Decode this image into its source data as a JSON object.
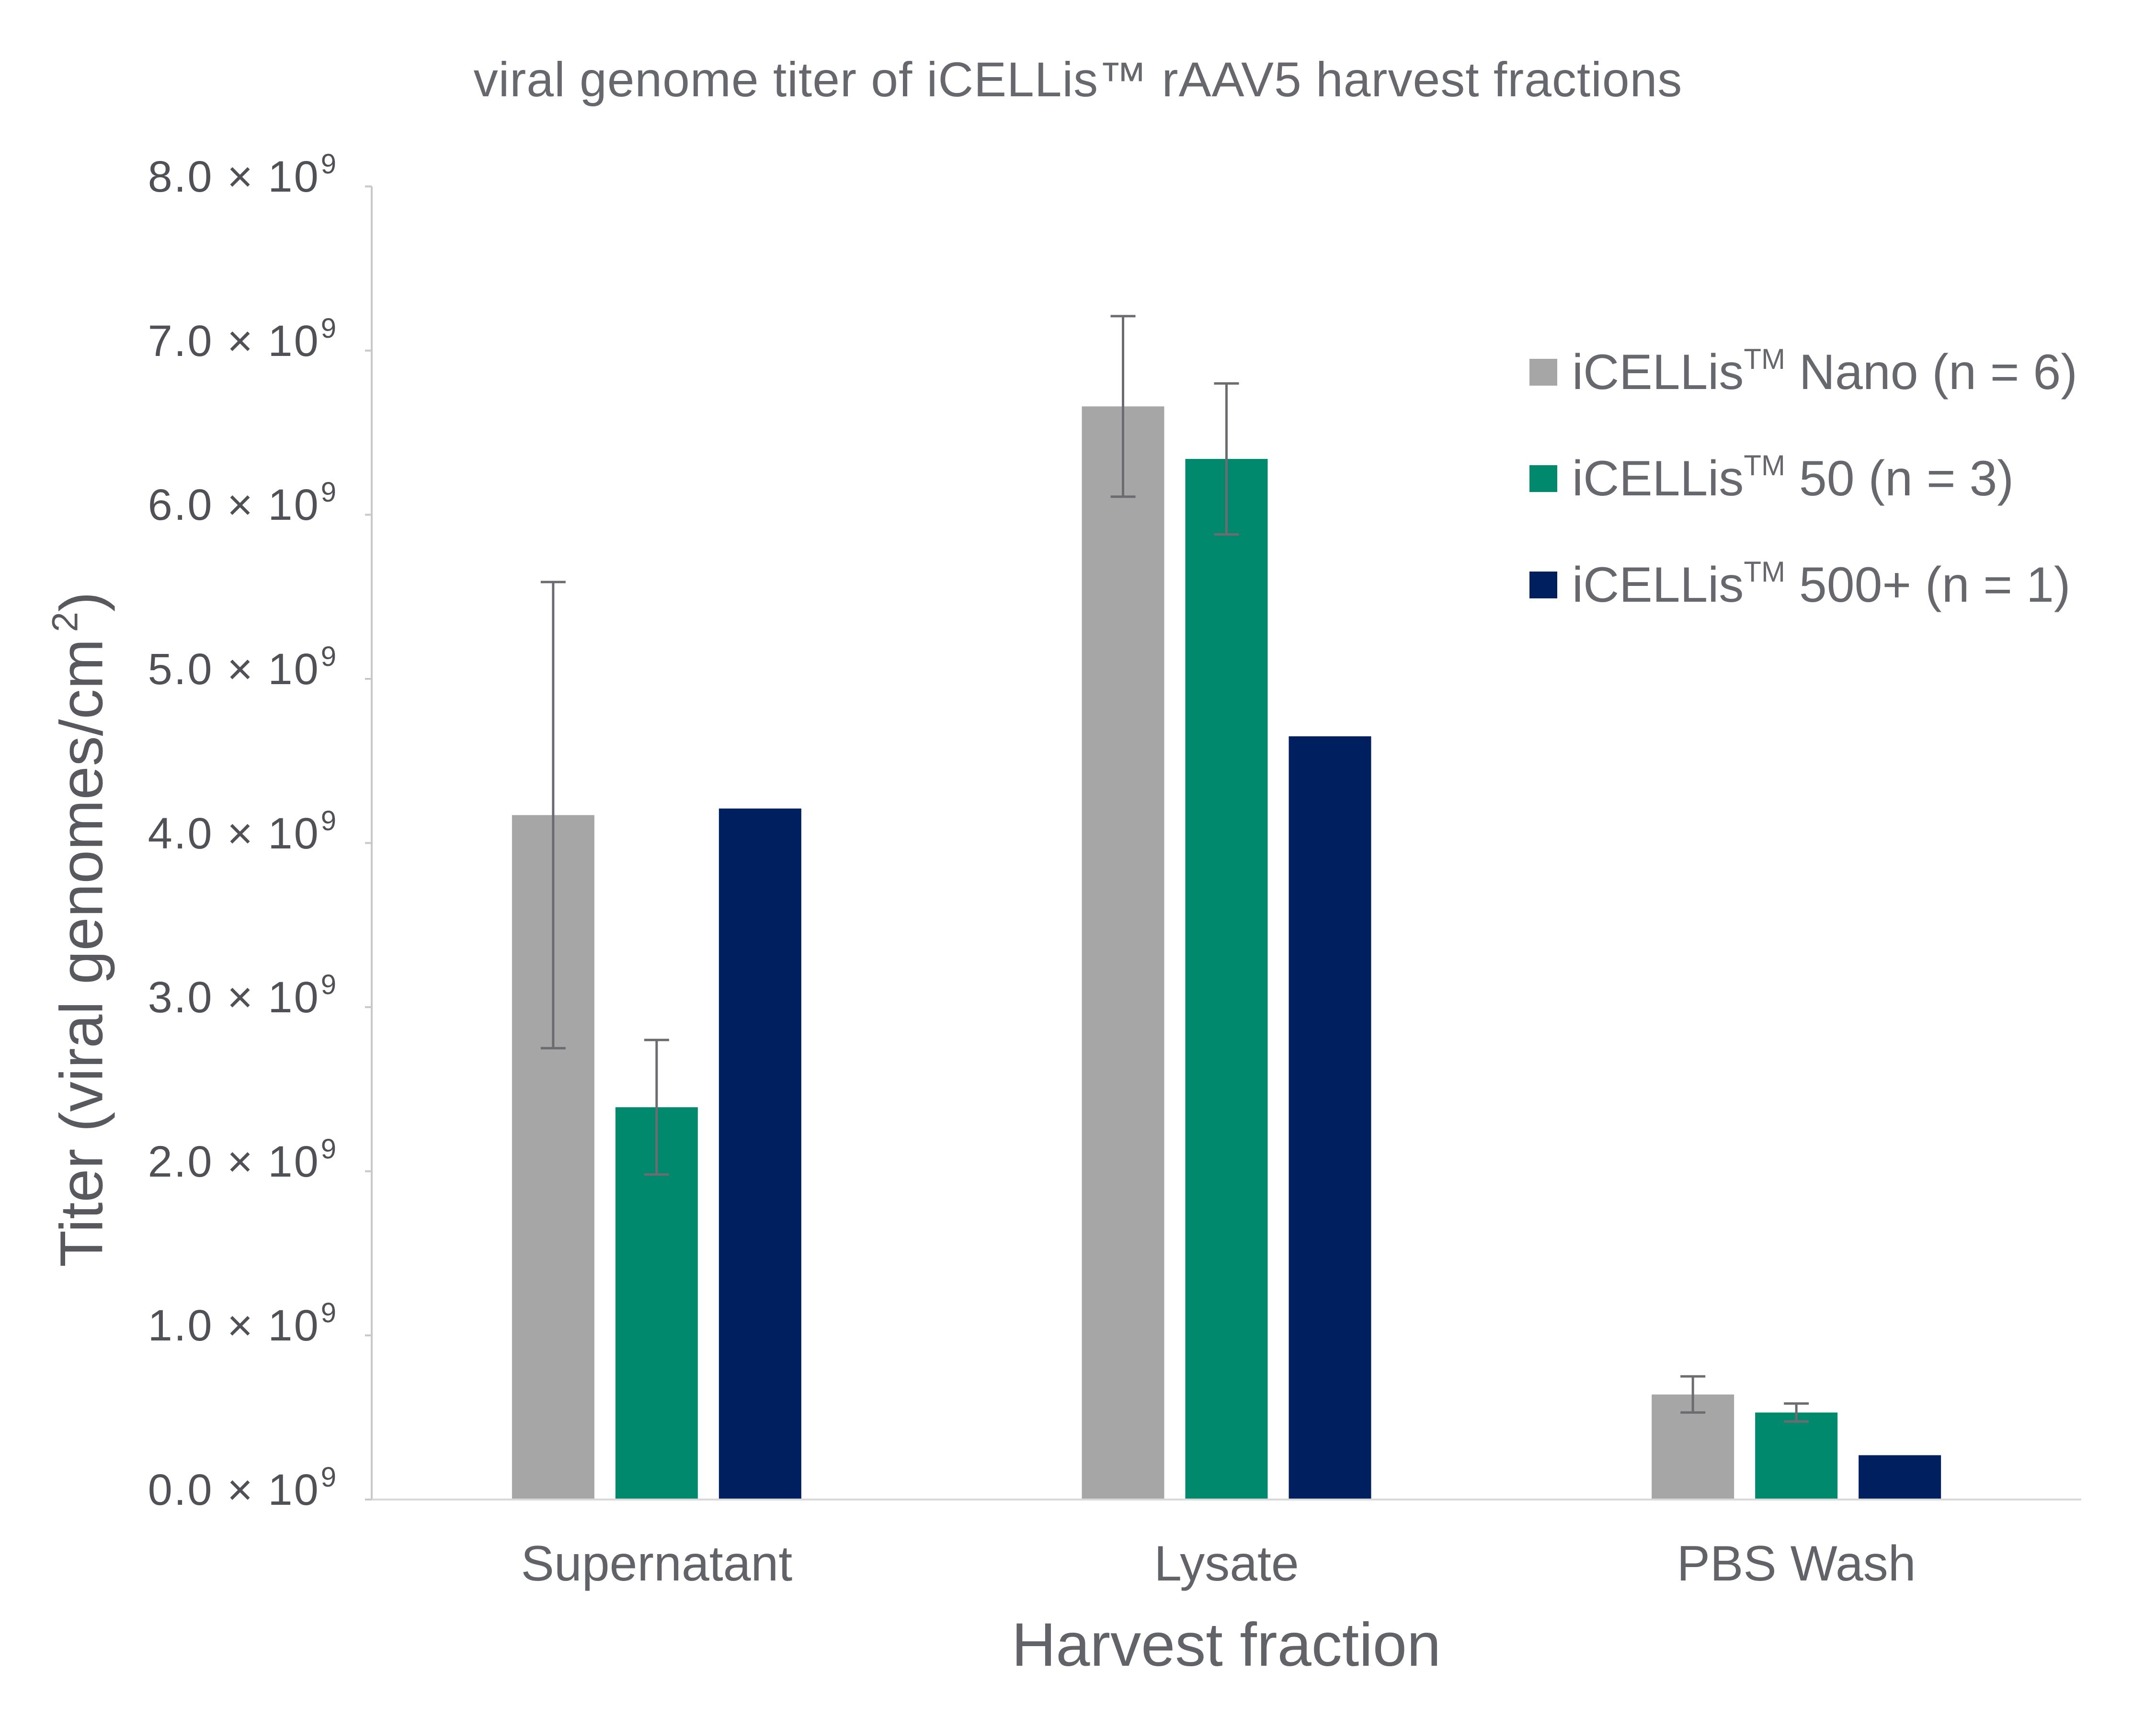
{
  "title": "viral genome titer of iCELLis™ rAAV5 harvest fractions",
  "y_axis": {
    "title_main": "Titer (viral genomes/cm",
    "title_sup": "2",
    "title_end": ")",
    "tick_mantissas": [
      "0.0",
      "1.0",
      "2.0",
      "3.0",
      "4.0",
      "5.0",
      "6.0",
      "7.0",
      "8.0"
    ],
    "tick_multiplier": "× 10",
    "tick_exponent": "9"
  },
  "x_axis": {
    "title": "Harvest fraction",
    "categories": [
      "Supernatant",
      "Lysate",
      "PBS Wash"
    ]
  },
  "legend": [
    {
      "name": "iCELLis",
      "tm": "TM",
      "suffix": " Nano (n = 6)",
      "color": "#a6a6a6"
    },
    {
      "name": "iCELLis",
      "tm": "TM",
      "suffix": " 50 (n = 3)",
      "color": "#00896c"
    },
    {
      "name": "iCELLis",
      "tm": "TM",
      "suffix": " 500+ (n = 1)",
      "color": "#001f5f"
    }
  ],
  "colors": {
    "axis": "#c8c8c8",
    "error_bar": "#6b6c70",
    "text": "#5f6066"
  },
  "chart_data": {
    "type": "bar",
    "title": "viral genome titer of iCELLis™ rAAV5 harvest fractions",
    "xlabel": "Harvest fraction",
    "ylabel": "Titer (viral genomes/cm²)",
    "categories": [
      "Supernatant",
      "Lysate",
      "PBS Wash"
    ],
    "units": "x 10^9 viral genomes/cm^2",
    "ylim": [
      0,
      8000000000.0
    ],
    "yticks": [
      0,
      1000000000.0,
      2000000000.0,
      3000000000.0,
      4000000000.0,
      5000000000.0,
      6000000000.0,
      7000000000.0,
      8000000000.0
    ],
    "grid": false,
    "legend_position": "upper right",
    "series": [
      {
        "name": "iCELLis™ Nano (n = 6)",
        "color": "#a6a6a6",
        "values": [
          4170000000.0,
          6660000000.0,
          640000000.0
        ],
        "error": [
          1420000000.0,
          550000000.0,
          110000000.0
        ]
      },
      {
        "name": "iCELLis™ 50 (n = 3)",
        "color": "#00896c",
        "values": [
          2390000000.0,
          6340000000.0,
          530000000.0
        ],
        "error": [
          410000000.0,
          460000000.0,
          55000000.0
        ]
      },
      {
        "name": "iCELLis™ 500+ (n = 1)",
        "color": "#001f5f",
        "values": [
          4210000000.0,
          4650000000.0,
          270000000.0
        ],
        "error": [
          null,
          null,
          null
        ]
      }
    ]
  }
}
